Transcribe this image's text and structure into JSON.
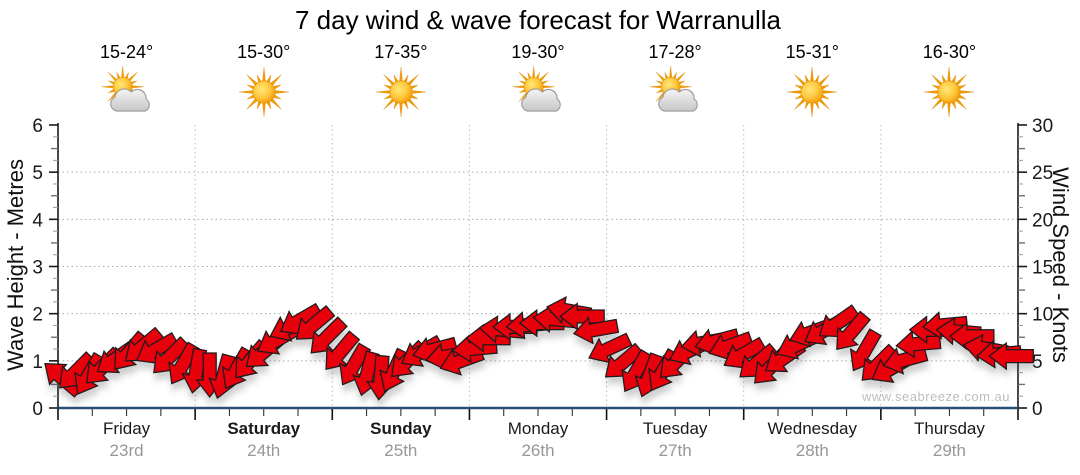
{
  "title": "7 day wind & wave forecast for Warranulla",
  "watermark": "www.seabreeze.com.au",
  "days": [
    {
      "name": "Friday",
      "date": "23rd",
      "temp": "15-24°",
      "icon": "sun-cloud-icon",
      "bold": false
    },
    {
      "name": "Saturday",
      "date": "24th",
      "temp": "15-30°",
      "icon": "sun-icon",
      "bold": true
    },
    {
      "name": "Sunday",
      "date": "25th",
      "temp": "17-35°",
      "icon": "sun-icon",
      "bold": true
    },
    {
      "name": "Monday",
      "date": "26th",
      "temp": "19-30°",
      "icon": "sun-cloud-icon",
      "bold": false
    },
    {
      "name": "Tuesday",
      "date": "27th",
      "temp": "17-28°",
      "icon": "sun-cloud-icon",
      "bold": false
    },
    {
      "name": "Wednesday",
      "date": "28th",
      "temp": "15-31°",
      "icon": "sun-icon",
      "bold": false
    },
    {
      "name": "Thursday",
      "date": "29th",
      "temp": "16-30°",
      "icon": "sun-icon",
      "bold": false
    }
  ],
  "chart_data": {
    "type": "wind-arrow-series",
    "title": "7 day wind & wave forecast for Warranulla",
    "categories": [
      "Friday 23rd",
      "Saturday 24th",
      "Sunday 25th",
      "Monday 26th",
      "Tuesday 27th",
      "Wednesday 28th",
      "Thursday 29th"
    ],
    "left_axis": {
      "label": "Wave Height - Metres",
      "min": 0,
      "max": 6,
      "major_ticks": [
        0,
        1,
        2,
        3,
        4,
        5,
        6
      ],
      "minor_step": 0.25
    },
    "right_axis": {
      "label": "Wind Speed - Knots",
      "min": 0,
      "max": 30,
      "major_ticks": [
        0,
        5,
        10,
        15,
        20,
        25,
        30
      ],
      "minor_step": 1.25
    },
    "grid": {
      "horizontal_metres": [
        1,
        2,
        3,
        4,
        5
      ],
      "vertical_day_boundaries": true
    },
    "point_format": [
      "t_fraction_of_week",
      "wind_speed_knots",
      "arrow_direction_deg_screen"
    ],
    "points": [
      [
        0.004,
        3.2,
        220
      ],
      [
        0.018,
        3.8,
        135
      ],
      [
        0.032,
        3.5,
        120
      ],
      [
        0.046,
        4.3,
        135
      ],
      [
        0.06,
        5.2,
        145
      ],
      [
        0.074,
        5.9,
        130
      ],
      [
        0.088,
        6.5,
        140
      ],
      [
        0.102,
        6.2,
        150
      ],
      [
        0.116,
        5.4,
        135
      ],
      [
        0.13,
        4.6,
        120
      ],
      [
        0.144,
        3.9,
        100
      ],
      [
        0.158,
        3.5,
        90
      ],
      [
        0.172,
        3.3,
        105
      ],
      [
        0.186,
        4.1,
        120
      ],
      [
        0.2,
        5.0,
        130
      ],
      [
        0.214,
        5.9,
        140
      ],
      [
        0.228,
        7.2,
        150
      ],
      [
        0.242,
        8.6,
        155
      ],
      [
        0.252,
        9.3,
        150
      ],
      [
        0.266,
        8.8,
        140
      ],
      [
        0.28,
        7.5,
        135
      ],
      [
        0.294,
        5.9,
        130
      ],
      [
        0.308,
        4.5,
        120
      ],
      [
        0.322,
        3.6,
        105
      ],
      [
        0.336,
        3.2,
        95
      ],
      [
        0.35,
        3.9,
        115
      ],
      [
        0.364,
        5.0,
        135
      ],
      [
        0.378,
        5.9,
        150
      ],
      [
        0.392,
        6.2,
        165
      ],
      [
        0.406,
        5.5,
        170
      ],
      [
        0.42,
        5.0,
        160
      ],
      [
        0.434,
        6.3,
        175
      ],
      [
        0.448,
        7.4,
        180
      ],
      [
        0.462,
        8.3,
        185
      ],
      [
        0.476,
        8.6,
        180
      ],
      [
        0.49,
        8.8,
        175
      ],
      [
        0.504,
        9.0,
        180
      ],
      [
        0.518,
        9.4,
        185
      ],
      [
        0.532,
        10.3,
        190
      ],
      [
        0.546,
        9.7,
        180
      ],
      [
        0.56,
        8.3,
        170
      ],
      [
        0.574,
        6.3,
        155
      ],
      [
        0.588,
        4.8,
        140
      ],
      [
        0.602,
        3.8,
        120
      ],
      [
        0.616,
        3.4,
        110
      ],
      [
        0.63,
        3.9,
        120
      ],
      [
        0.644,
        4.9,
        135
      ],
      [
        0.658,
        6.1,
        155
      ],
      [
        0.672,
        6.9,
        170
      ],
      [
        0.686,
        7.1,
        165
      ],
      [
        0.7,
        6.6,
        160
      ],
      [
        0.714,
        5.7,
        150
      ],
      [
        0.728,
        4.8,
        140
      ],
      [
        0.742,
        4.3,
        135
      ],
      [
        0.756,
        5.3,
        145
      ],
      [
        0.77,
        6.7,
        155
      ],
      [
        0.784,
        8.0,
        160
      ],
      [
        0.798,
        8.2,
        150
      ],
      [
        0.812,
        9.0,
        145
      ],
      [
        0.826,
        8.0,
        130
      ],
      [
        0.84,
        6.0,
        120
      ],
      [
        0.854,
        4.6,
        135
      ],
      [
        0.868,
        4.2,
        150
      ],
      [
        0.882,
        5.1,
        165
      ],
      [
        0.896,
        6.8,
        175
      ],
      [
        0.91,
        8.3,
        180
      ],
      [
        0.924,
        8.8,
        175
      ],
      [
        0.938,
        8.1,
        185
      ],
      [
        0.952,
        7.6,
        180
      ],
      [
        0.966,
        6.3,
        190
      ],
      [
        0.98,
        5.7,
        175
      ],
      [
        0.993,
        5.5,
        180
      ]
    ],
    "colors": {
      "arrow_fill": "#e8000a",
      "arrow_stroke": "#1a1a1a",
      "axis_line": "#1a1a1a",
      "bottom_axis_line": "#2a4e7a",
      "gridline": "#ababab",
      "tick_label": "#1a1a1a",
      "date_label": "#979797",
      "watermark": "#bdbdbd",
      "sun_core": "#f7a600",
      "sun_ray": "#f39c00",
      "cloud_fill": "#d9d9d9"
    }
  }
}
